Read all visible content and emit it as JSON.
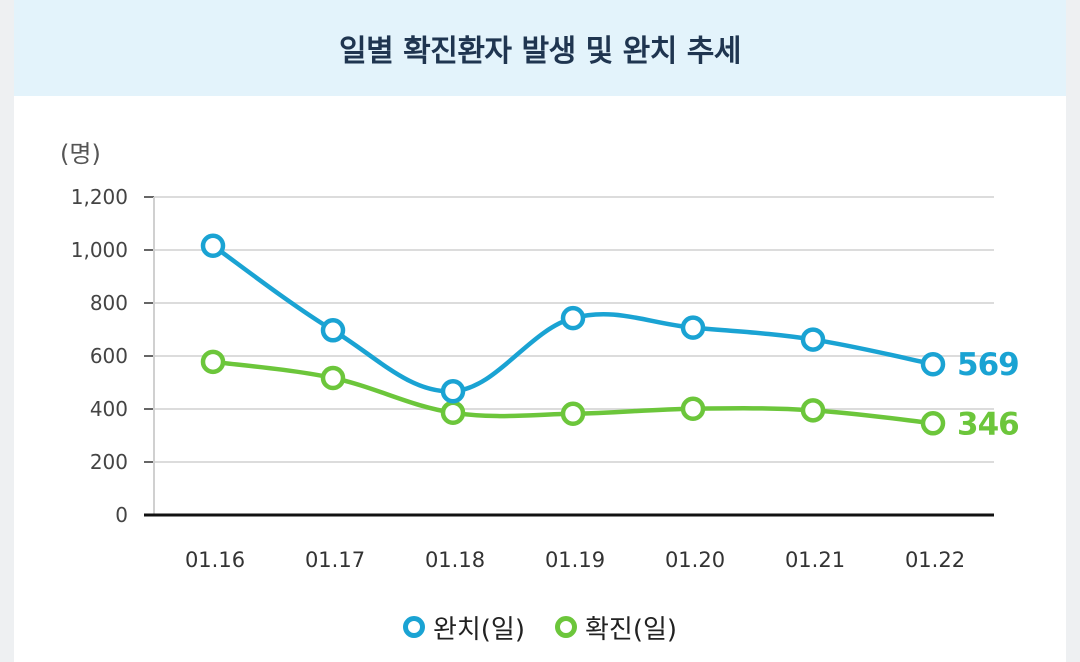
{
  "colors": {
    "recovered": "#1aa3d3",
    "confirmed": "#6cc63b",
    "header_bg": "#e3f3fb",
    "title": "#1f3550"
  },
  "chart_data": {
    "type": "line",
    "title": "일별 확진환자 발생 및 완치 추세",
    "ylabel": "(명)",
    "xlabel": "",
    "categories": [
      "01.16",
      "01.17",
      "01.18",
      "01.19",
      "01.20",
      "01.21",
      "01.22"
    ],
    "y_ticks": [
      "0",
      "200",
      "400",
      "600",
      "800",
      "1,000",
      "1,200"
    ],
    "ylim": [
      0,
      1200
    ],
    "grid": true,
    "legend_position": "bottom",
    "series": [
      {
        "name": "완치(일)",
        "values": [
          1016,
          697,
          467,
          743,
          707,
          662,
          569
        ],
        "end_label": "569"
      },
      {
        "name": "확진(일)",
        "values": [
          578,
          517,
          386,
          382,
          401,
          395,
          346
        ],
        "end_label": "346"
      }
    ]
  }
}
